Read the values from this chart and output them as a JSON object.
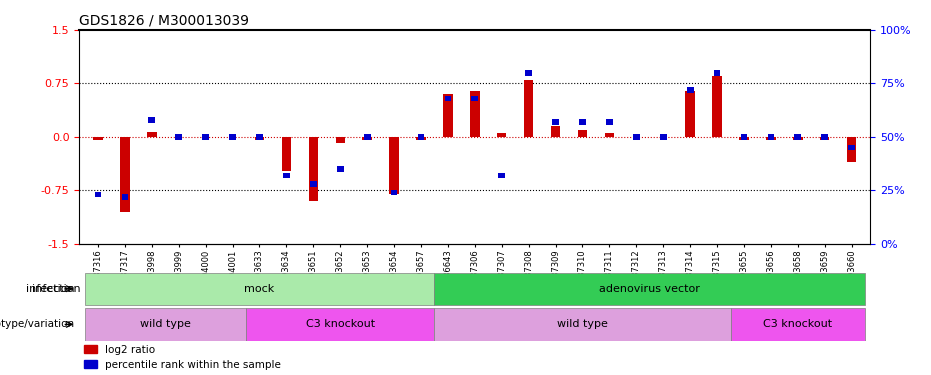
{
  "title": "GDS1826 / M300013039",
  "samples": [
    "GSM87316",
    "GSM87317",
    "GSM93998",
    "GSM93999",
    "GSM94000",
    "GSM94001",
    "GSM93633",
    "GSM93634",
    "GSM93651",
    "GSM93652",
    "GSM93653",
    "GSM93654",
    "GSM93657",
    "GSM86643",
    "GSM87306",
    "GSM87307",
    "GSM87308",
    "GSM87309",
    "GSM87310",
    "GSM87311",
    "GSM87312",
    "GSM87313",
    "GSM87314",
    "GSM87315",
    "GSM93655",
    "GSM93656",
    "GSM93658",
    "GSM93659",
    "GSM93660"
  ],
  "log2_ratio": [
    -0.05,
    -1.05,
    0.07,
    0.0,
    0.0,
    0.0,
    -0.05,
    -0.48,
    -0.9,
    -0.08,
    -0.05,
    -0.8,
    -0.05,
    0.6,
    0.65,
    0.05,
    0.8,
    0.15,
    0.1,
    0.05,
    0.0,
    0.0,
    0.65,
    0.85,
    -0.05,
    -0.05,
    -0.05,
    -0.05,
    -0.35
  ],
  "percentile": [
    23,
    22,
    58,
    50,
    50,
    50,
    50,
    32,
    28,
    35,
    50,
    24,
    50,
    68,
    68,
    32,
    80,
    57,
    57,
    57,
    50,
    50,
    72,
    80,
    50,
    50,
    50,
    50,
    45
  ],
  "infection_groups": [
    {
      "label": "mock",
      "start": 0,
      "end": 13,
      "color": "#AAEAAA"
    },
    {
      "label": "adenovirus vector",
      "start": 13,
      "end": 29,
      "color": "#33CC55"
    }
  ],
  "genotype_groups": [
    {
      "label": "wild type",
      "start": 0,
      "end": 6,
      "color": "#DDA0DD"
    },
    {
      "label": "C3 knockout",
      "start": 6,
      "end": 13,
      "color": "#EE55EE"
    },
    {
      "label": "wild type",
      "start": 13,
      "end": 24,
      "color": "#DDA0DD"
    },
    {
      "label": "C3 knockout",
      "start": 24,
      "end": 29,
      "color": "#EE55EE"
    }
  ],
  "ylim": [
    -1.5,
    1.5
  ],
  "yticks_left": [
    -1.5,
    -0.75,
    0.0,
    0.75,
    1.5
  ],
  "yticks_right_vals": [
    -1.5,
    -0.75,
    0.0,
    0.75,
    1.5
  ],
  "yticks_right_labels": [
    "0%",
    "25%",
    "50%",
    "75%",
    "100%"
  ],
  "bar_color_red": "#CC0000",
  "bar_color_blue": "#0000CC",
  "dotted_line_color": "#000000",
  "zero_line_color": "#CC0000",
  "background_color": "#FFFFFF"
}
